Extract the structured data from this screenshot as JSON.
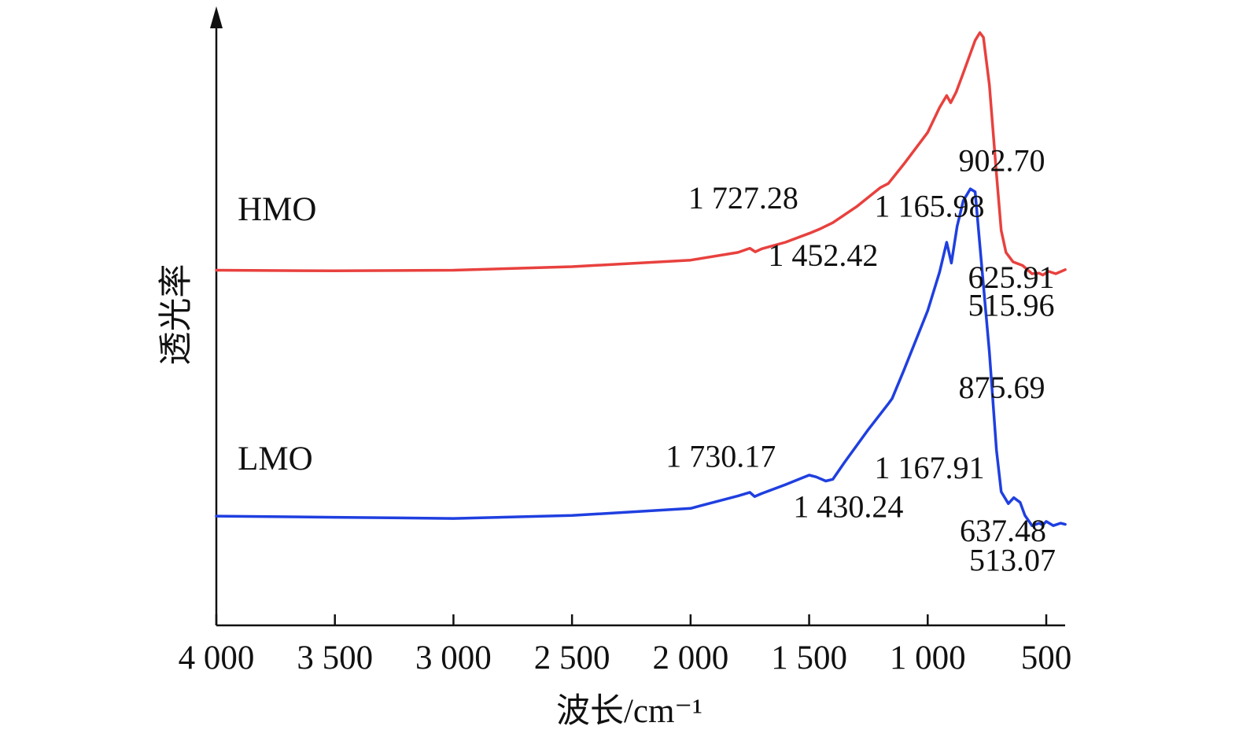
{
  "chart_data": {
    "type": "line",
    "xlabel": "波长/cm⁻¹",
    "ylabel": "透光率",
    "x_reversed": true,
    "xlim": [
      4000,
      420
    ],
    "ylim": [
      0,
      10
    ],
    "x_ticks": [
      4000,
      3500,
      3000,
      2500,
      2000,
      1500,
      1000,
      500
    ],
    "x_tick_labels": [
      "4 000",
      "3 500",
      "3 000",
      "2 500",
      "2 000",
      "1 500",
      "1 000",
      "500"
    ],
    "y_ticks_shown": false,
    "grid": false,
    "series": [
      {
        "name": "HMO",
        "color": "#e8413e",
        "points": [
          [
            4000,
            5.98
          ],
          [
            3500,
            5.97
          ],
          [
            3000,
            5.98
          ],
          [
            2500,
            6.04
          ],
          [
            2000,
            6.15
          ],
          [
            1800,
            6.28
          ],
          [
            1750,
            6.35
          ],
          [
            1727,
            6.29
          ],
          [
            1700,
            6.34
          ],
          [
            1600,
            6.45
          ],
          [
            1500,
            6.6
          ],
          [
            1452,
            6.68
          ],
          [
            1400,
            6.78
          ],
          [
            1300,
            7.05
          ],
          [
            1200,
            7.37
          ],
          [
            1166,
            7.44
          ],
          [
            1100,
            7.77
          ],
          [
            1000,
            8.3
          ],
          [
            950,
            8.72
          ],
          [
            920,
            8.92
          ],
          [
            903,
            8.8
          ],
          [
            880,
            8.98
          ],
          [
            850,
            9.3
          ],
          [
            800,
            9.85
          ],
          [
            780,
            9.98
          ],
          [
            765,
            9.9
          ],
          [
            740,
            9.1
          ],
          [
            710,
            7.6
          ],
          [
            690,
            6.65
          ],
          [
            670,
            6.28
          ],
          [
            640,
            6.12
          ],
          [
            600,
            6.06
          ],
          [
            560,
            5.92
          ],
          [
            530,
            5.93
          ],
          [
            515,
            5.9
          ],
          [
            490,
            5.96
          ],
          [
            460,
            5.92
          ],
          [
            420,
            5.99
          ]
        ]
      },
      {
        "name": "LMO",
        "color": "#1f3fe0",
        "points": [
          [
            4000,
            1.84
          ],
          [
            3500,
            1.82
          ],
          [
            3000,
            1.8
          ],
          [
            2500,
            1.85
          ],
          [
            2000,
            1.97
          ],
          [
            1800,
            2.18
          ],
          [
            1750,
            2.24
          ],
          [
            1730,
            2.17
          ],
          [
            1700,
            2.22
          ],
          [
            1600,
            2.37
          ],
          [
            1500,
            2.53
          ],
          [
            1470,
            2.5
          ],
          [
            1430,
            2.43
          ],
          [
            1400,
            2.46
          ],
          [
            1350,
            2.75
          ],
          [
            1250,
            3.3
          ],
          [
            1168,
            3.72
          ],
          [
            1150,
            3.82
          ],
          [
            1100,
            4.3
          ],
          [
            1000,
            5.3
          ],
          [
            950,
            5.95
          ],
          [
            920,
            6.45
          ],
          [
            900,
            6.1
          ],
          [
            876,
            6.72
          ],
          [
            850,
            7.15
          ],
          [
            820,
            7.35
          ],
          [
            800,
            7.3
          ],
          [
            780,
            6.4
          ],
          [
            740,
            4.6
          ],
          [
            710,
            2.95
          ],
          [
            690,
            2.25
          ],
          [
            660,
            2.05
          ],
          [
            637,
            2.15
          ],
          [
            610,
            2.07
          ],
          [
            590,
            1.85
          ],
          [
            560,
            1.68
          ],
          [
            530,
            1.72
          ],
          [
            515,
            1.69
          ],
          [
            500,
            1.75
          ],
          [
            470,
            1.68
          ],
          [
            440,
            1.72
          ],
          [
            420,
            1.7
          ]
        ]
      }
    ],
    "series_labels": [
      {
        "text": "HMO",
        "x": 3910,
        "y": 6.82,
        "color": "#111111"
      },
      {
        "text": "LMO",
        "x": 3910,
        "y": 2.62,
        "color": "#111111"
      }
    ],
    "annotations": [
      {
        "text": "902.70",
        "x": 870,
        "y": 7.65
      },
      {
        "text": "1 727.28",
        "x": 2010,
        "y": 7.02
      },
      {
        "text": "1 165.98",
        "x": 1225,
        "y": 6.88
      },
      {
        "text": "1 452.42",
        "x": 1673,
        "y": 6.05
      },
      {
        "text": "625.91",
        "x": 830,
        "y": 5.68
      },
      {
        "text": "515.96",
        "x": 830,
        "y": 5.21
      },
      {
        "text": "875.69",
        "x": 870,
        "y": 3.83
      },
      {
        "text": "1 730.17",
        "x": 2105,
        "y": 2.67
      },
      {
        "text": "1 167.91",
        "x": 1225,
        "y": 2.48
      },
      {
        "text": "1 430.24",
        "x": 1567,
        "y": 1.82
      },
      {
        "text": "637.48",
        "x": 865,
        "y": 1.42
      },
      {
        "text": "513.07",
        "x": 825,
        "y": 0.92
      }
    ]
  }
}
